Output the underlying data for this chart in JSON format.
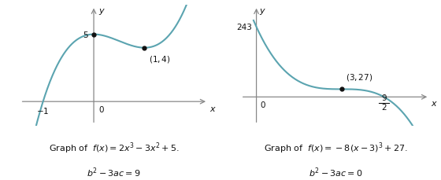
{
  "graph1": {
    "func_label": "Graph of  $f(x) = 2x^3 - 3x^2 + 5.$",
    "disc_label": "$b^2 - 3ac = 9$",
    "local_max": [
      0,
      5
    ],
    "local_min": [
      1,
      4
    ],
    "xlim": [
      -1.5,
      2.3
    ],
    "ylim": [
      -1.8,
      7.2
    ],
    "curve_xmin": -1.38,
    "curve_xmax": 2.15
  },
  "graph2": {
    "func_label": "Graph of  $f(x) = -8(x-3)^3 + 27.$",
    "disc_label": "$b^2 - 3ac = 0$",
    "inflection": [
      3,
      27
    ],
    "x_intercept": 4.5,
    "y_intercept": 243,
    "xlim": [
      -0.6,
      6.2
    ],
    "ylim": [
      -100,
      320
    ],
    "curve_xmin": -0.1,
    "curve_xmax": 5.9
  },
  "curve_color": "#5BA4B0",
  "dot_color": "#111111",
  "axis_color": "#888888",
  "text_color": "#111111",
  "caption_fontsize": 8.0,
  "tick_fontsize": 7.5,
  "annot_fontsize": 7.5
}
